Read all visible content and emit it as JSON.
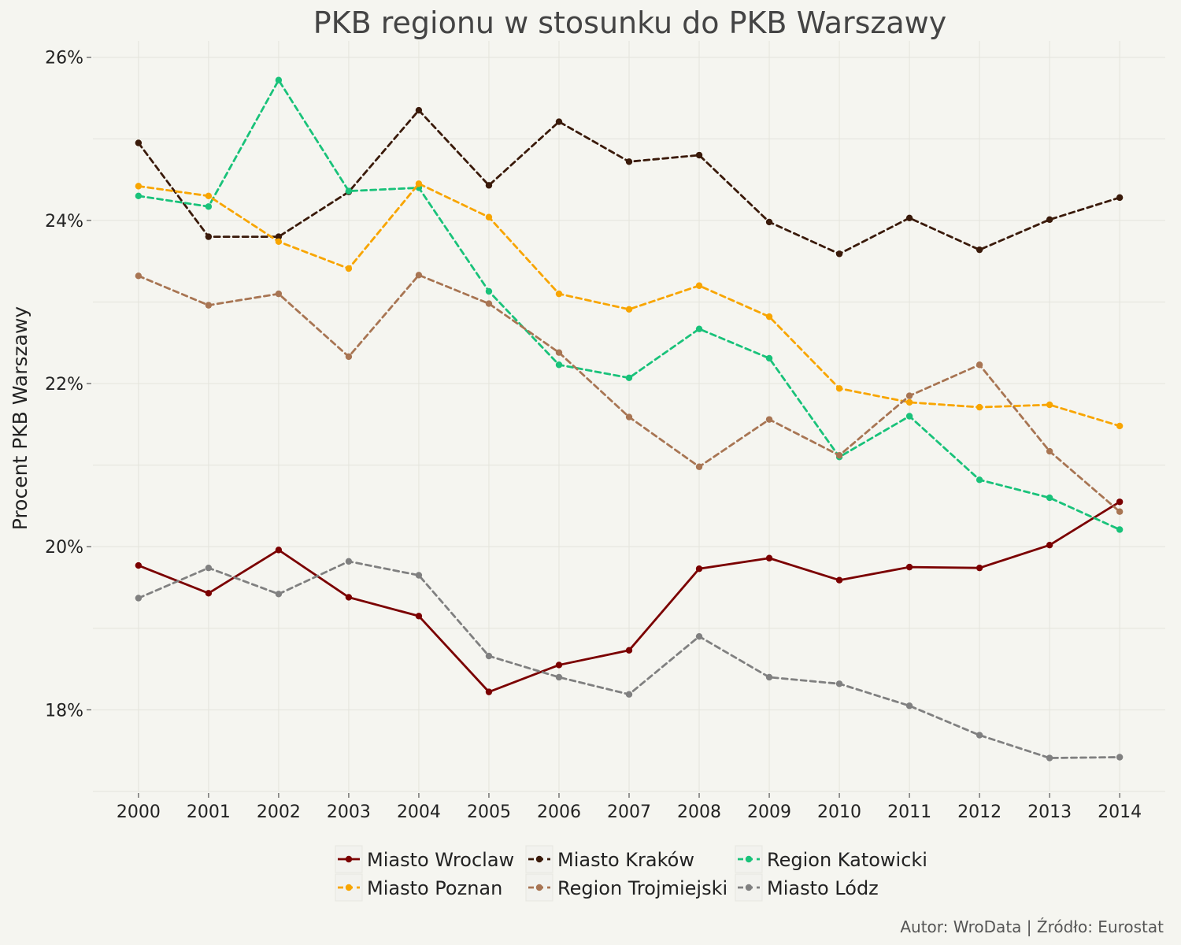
{
  "chart_data": {
    "type": "line",
    "title": "PKB regionu w stosunku do PKB Warszawy",
    "xlabel": "",
    "ylabel": "Procent PKB Warszawy",
    "caption": "Autor: WroData | Źródło: Eurostat",
    "x": [
      2000,
      2001,
      2002,
      2003,
      2004,
      2005,
      2006,
      2007,
      2008,
      2009,
      2010,
      2011,
      2012,
      2013,
      2014
    ],
    "x_tick_labels": [
      "2000",
      "2001",
      "2002",
      "2003",
      "2004",
      "2005",
      "2006",
      "2007",
      "2008",
      "2009",
      "2010",
      "2011",
      "2012",
      "2013",
      "2014"
    ],
    "ylim": [
      17.0,
      26.2
    ],
    "y_ticks": [
      18,
      20,
      22,
      24,
      26
    ],
    "y_tick_labels": [
      "18%",
      "20%",
      "22%",
      "24%",
      "26%"
    ],
    "grid": true,
    "legend_position": "bottom",
    "series": [
      {
        "name": "Miasto Wroclaw",
        "color": "#7b0000",
        "dash": "solid",
        "values": [
          19.77,
          19.43,
          19.96,
          19.38,
          19.15,
          18.22,
          18.55,
          18.73,
          19.73,
          19.86,
          19.59,
          19.75,
          19.74,
          20.02,
          20.55
        ]
      },
      {
        "name": "Miasto Kraków",
        "color": "#3a1a0a",
        "dash": "dashed",
        "values": [
          24.95,
          23.8,
          23.8,
          24.35,
          25.35,
          24.43,
          25.21,
          24.72,
          24.8,
          23.98,
          23.59,
          24.03,
          23.64,
          24.01,
          24.28
        ]
      },
      {
        "name": "Region Katowicki",
        "color": "#19c27a",
        "dash": "dashed",
        "values": [
          24.3,
          24.17,
          25.72,
          24.36,
          24.4,
          23.13,
          22.23,
          22.07,
          22.67,
          22.31,
          21.1,
          21.6,
          20.82,
          20.6,
          20.21
        ]
      },
      {
        "name": "Miasto Poznan",
        "color": "#f8a500",
        "dash": "dashed",
        "values": [
          24.42,
          24.3,
          23.74,
          23.41,
          24.45,
          24.04,
          23.1,
          22.91,
          23.2,
          22.82,
          21.94,
          21.77,
          21.71,
          21.74,
          21.48
        ]
      },
      {
        "name": "Region Trojmiejski",
        "color": "#a87553",
        "dash": "dashed",
        "values": [
          23.32,
          22.96,
          23.1,
          22.33,
          23.33,
          22.98,
          22.38,
          21.59,
          20.98,
          21.56,
          21.12,
          21.85,
          22.23,
          21.17,
          20.43
        ]
      },
      {
        "name": "Miasto Lódz",
        "color": "#808080",
        "dash": "dashed",
        "values": [
          19.37,
          19.74,
          19.42,
          19.82,
          19.65,
          18.66,
          18.4,
          18.19,
          18.9,
          18.4,
          18.32,
          18.05,
          17.69,
          17.41,
          17.42
        ]
      }
    ]
  }
}
